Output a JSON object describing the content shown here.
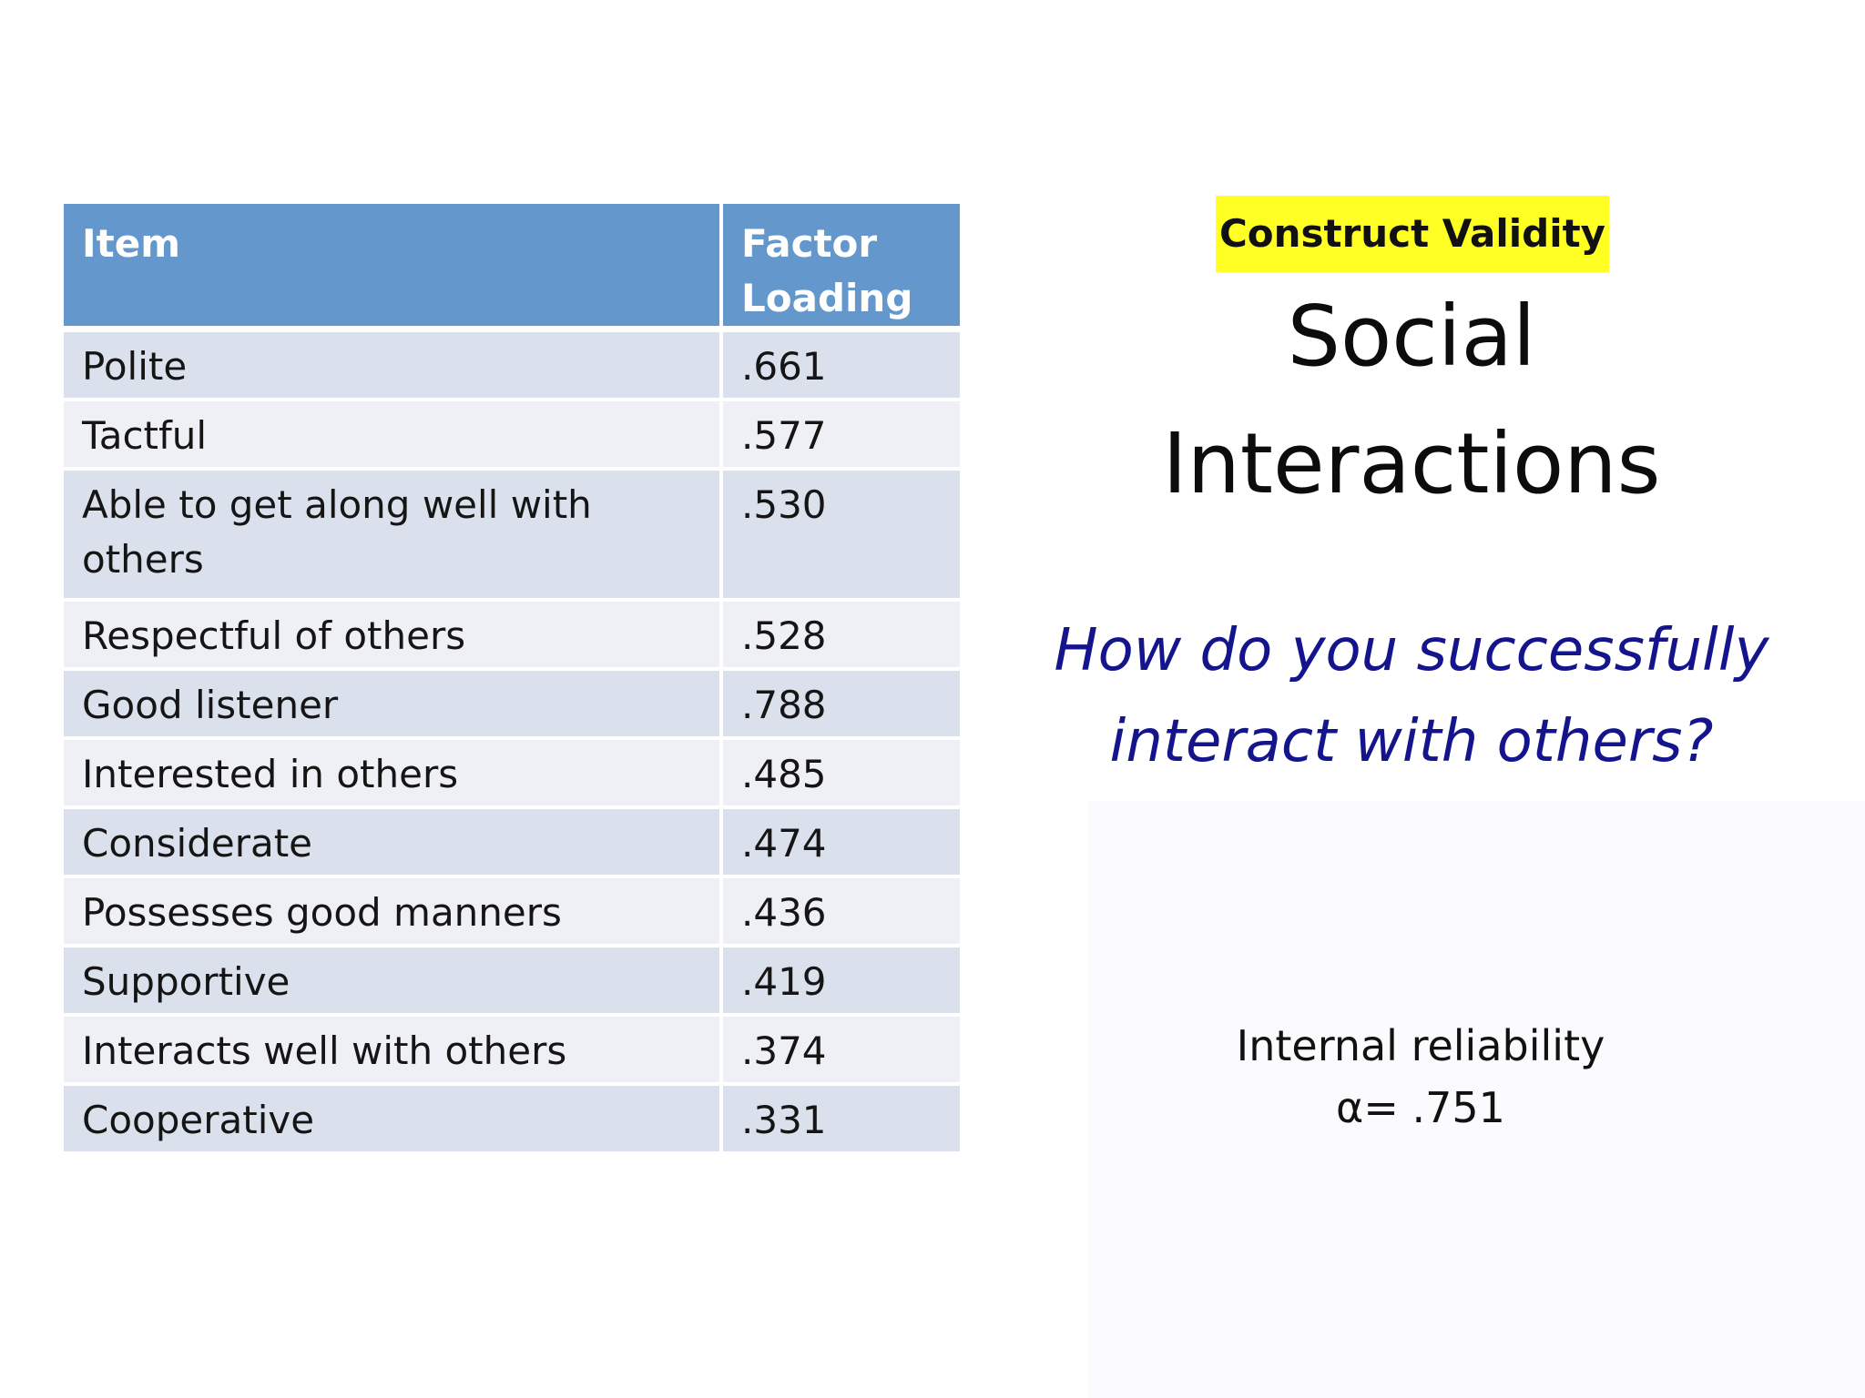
{
  "table": {
    "headers": {
      "item": "Item",
      "factor_loading_line1": "Factor",
      "factor_loading_line2": "Loading"
    },
    "rows": [
      {
        "item": "Polite",
        "loading": ".661"
      },
      {
        "item": "Tactful",
        "loading": ".577"
      },
      {
        "item": "Able to get along well with others",
        "item_line1": "Able to get along well with",
        "item_line2": "others",
        "loading": ".530"
      },
      {
        "item": "Respectful of others",
        "loading": ".528"
      },
      {
        "item": "Good listener",
        "loading": ".788"
      },
      {
        "item": "Interested in others",
        "loading": ".485"
      },
      {
        "item": "Considerate",
        "loading": ".474"
      },
      {
        "item": "Possesses good manners",
        "loading": ".436"
      },
      {
        "item": "Supportive",
        "loading": ".419"
      },
      {
        "item": "Interacts well with others",
        "loading": ".374"
      },
      {
        "item": "Cooperative",
        "loading": ".331"
      }
    ]
  },
  "badge": {
    "label": "Construct Validity"
  },
  "title": {
    "line1": "Social",
    "line2": "Interactions"
  },
  "question": {
    "line1": "How do you successfully",
    "line2": "interact with others?"
  },
  "reliability": {
    "label": "Internal reliability",
    "value": "α= .751"
  },
  "colors": {
    "header_blue": "#6497cc",
    "row_dark": "#dbe1ec",
    "row_light": "#eef0f6",
    "badge_yellow": "#ffff24",
    "question_navy": "#14148c"
  }
}
